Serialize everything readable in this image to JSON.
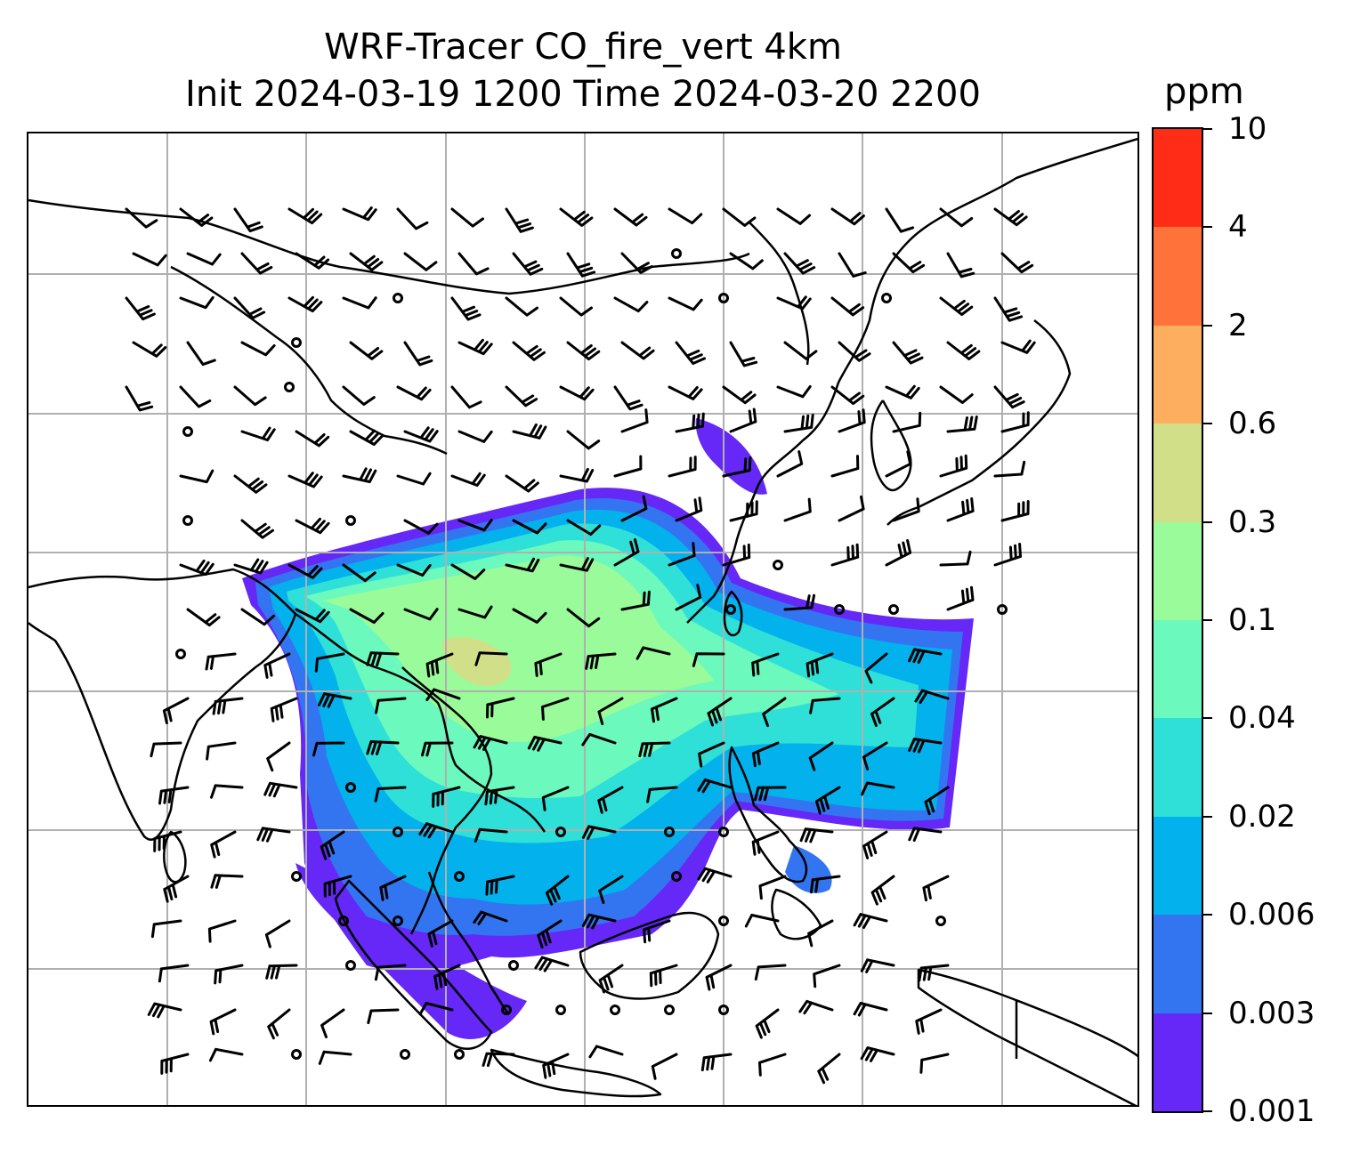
{
  "title": {
    "line1": "WRF-Tracer CO_fire_vert 4km",
    "line2": "Init 2024-03-19 1200 Time 2024-03-20 2200"
  },
  "colorbar": {
    "unit": "ppm",
    "ticks": [
      "0.001",
      "0.003",
      "0.006",
      "0.02",
      "0.04",
      "0.1",
      "0.3",
      "0.6",
      "2",
      "4",
      "10"
    ],
    "colors": [
      "#6528f7",
      "#3375f1",
      "#03b1ec",
      "#2ee0d8",
      "#6bf9bd",
      "#99fb9a",
      "#d1e088",
      "#fdae5f",
      "#ff723a",
      "#ff2d17"
    ]
  },
  "map": {
    "gridlines": "on",
    "features": [
      "coastlines",
      "country-borders",
      "wind-barbs",
      "CO-fire-tracer-shading"
    ]
  }
}
